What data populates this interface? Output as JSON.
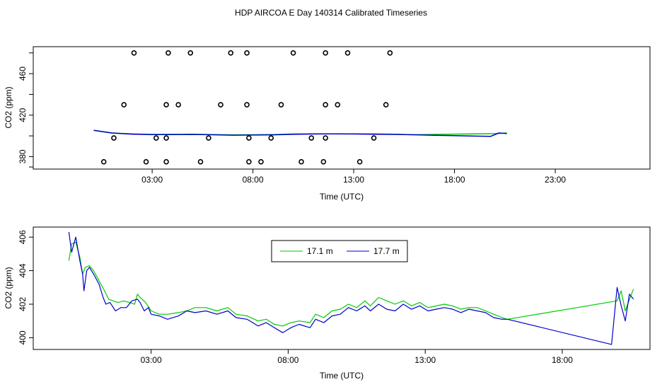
{
  "title": "HDP AIRCOA E  Day 140314  Calibrated Timeseries",
  "colors": {
    "green": "#00cc00",
    "blue": "#0000cc",
    "axis": "#000000",
    "background": "#ffffff"
  },
  "chart_data": [
    {
      "type": "scatter",
      "xlabel": "Time (UTC)",
      "ylabel": "CO2 (ppm)",
      "xlim": [
        -2.9,
        27.7
      ],
      "ylim": [
        368,
        486
      ],
      "x_ticks": [
        3,
        8,
        13,
        18,
        23
      ],
      "x_tick_labels": [
        "03:00",
        "08:00",
        "13:00",
        "18:00",
        "23:00"
      ],
      "y_ticks": [
        380,
        420,
        460
      ],
      "y_tick_labels": [
        "380",
        "420",
        "460"
      ],
      "grid": false,
      "scatter_points": [
        [
          2.1,
          480
        ],
        [
          3.8,
          480
        ],
        [
          4.9,
          480
        ],
        [
          6.9,
          480
        ],
        [
          7.7,
          480
        ],
        [
          10.0,
          480
        ],
        [
          11.6,
          480
        ],
        [
          12.7,
          480
        ],
        [
          14.8,
          480
        ],
        [
          1.6,
          430
        ],
        [
          3.7,
          430
        ],
        [
          4.3,
          430
        ],
        [
          6.4,
          430
        ],
        [
          7.7,
          430
        ],
        [
          9.4,
          430
        ],
        [
          11.6,
          430
        ],
        [
          12.2,
          430
        ],
        [
          14.6,
          430
        ],
        [
          1.1,
          398
        ],
        [
          3.2,
          398
        ],
        [
          3.7,
          398
        ],
        [
          5.8,
          398
        ],
        [
          7.8,
          398
        ],
        [
          8.9,
          398
        ],
        [
          10.9,
          398
        ],
        [
          11.6,
          398
        ],
        [
          14.0,
          398
        ],
        [
          0.6,
          375
        ],
        [
          2.7,
          375
        ],
        [
          3.7,
          375
        ],
        [
          5.4,
          375
        ],
        [
          7.8,
          375
        ],
        [
          8.4,
          375
        ],
        [
          10.4,
          375
        ],
        [
          11.5,
          375
        ],
        [
          13.3,
          375
        ]
      ],
      "series": [
        {
          "name": "17.1 m",
          "color": "#00cc00",
          "values": [
            [
              0.1,
              405.4
            ],
            [
              1.0,
              402.8
            ],
            [
              2.0,
              401.9
            ],
            [
              3.0,
              401.4
            ],
            [
              4.0,
              401.5
            ],
            [
              5.0,
              401.6
            ],
            [
              6.0,
              401.3
            ],
            [
              7.0,
              401.0
            ],
            [
              8.0,
              401.1
            ],
            [
              9.0,
              401.3
            ],
            [
              10.0,
              401.8
            ],
            [
              11.0,
              401.9
            ],
            [
              12.0,
              402.0
            ],
            [
              13.0,
              402.0
            ],
            [
              14.0,
              401.9
            ],
            [
              15.0,
              401.6
            ],
            [
              16.0,
              401.1
            ],
            [
              17.0,
              401.4
            ],
            [
              18.0,
              401.7
            ],
            [
              19.0,
              402.0
            ],
            [
              20.0,
              402.2
            ],
            [
              20.6,
              402.8
            ]
          ]
        },
        {
          "name": "17.7 m",
          "color": "#0000cc",
          "values": [
            [
              0.1,
              405.4
            ],
            [
              1.0,
              402.8
            ],
            [
              2.0,
              401.7
            ],
            [
              3.0,
              401.3
            ],
            [
              4.0,
              401.3
            ],
            [
              5.0,
              401.4
            ],
            [
              6.0,
              401.1
            ],
            [
              7.0,
              400.7
            ],
            [
              8.0,
              400.8
            ],
            [
              9.0,
              401.0
            ],
            [
              10.0,
              401.5
            ],
            [
              11.0,
              401.8
            ],
            [
              12.0,
              401.9
            ],
            [
              13.0,
              401.8
            ],
            [
              14.0,
              401.6
            ],
            [
              15.0,
              401.4
            ],
            [
              16.0,
              401.1
            ],
            [
              17.0,
              400.6
            ],
            [
              18.0,
              400.2
            ],
            [
              19.0,
              399.8
            ],
            [
              19.8,
              399.6
            ],
            [
              20.2,
              402.8
            ],
            [
              20.6,
              402.3
            ]
          ]
        }
      ]
    },
    {
      "type": "line",
      "xlabel": "Time (UTC)",
      "ylabel": "CO2 (ppm)",
      "xlim": [
        -1.3,
        21.2
      ],
      "ylim": [
        399.3,
        406.6
      ],
      "x_ticks": [
        3,
        8,
        13,
        18
      ],
      "x_tick_labels": [
        "03:00",
        "08:00",
        "13:00",
        "18:00"
      ],
      "y_ticks": [
        400,
        402,
        404,
        406
      ],
      "y_tick_labels": [
        "400",
        "402",
        "404",
        "406"
      ],
      "grid": false,
      "legend_position": "top-center",
      "series": [
        {
          "name": "17.1 m",
          "color": "#00cc00",
          "values": [
            [
              0.0,
              404.6
            ],
            [
              0.1,
              405.6
            ],
            [
              0.25,
              405.7
            ],
            [
              0.4,
              404.8
            ],
            [
              0.5,
              403.8
            ],
            [
              0.6,
              404.2
            ],
            [
              0.75,
              404.3
            ],
            [
              0.9,
              404.0
            ],
            [
              1.1,
              403.4
            ],
            [
              1.3,
              402.8
            ],
            [
              1.45,
              402.3
            ],
            [
              1.6,
              402.2
            ],
            [
              1.8,
              402.1
            ],
            [
              2.0,
              402.2
            ],
            [
              2.2,
              402.1
            ],
            [
              2.4,
              402.0
            ],
            [
              2.5,
              402.6
            ],
            [
              2.6,
              402.4
            ],
            [
              2.8,
              402.1
            ],
            [
              3.0,
              401.6
            ],
            [
              3.3,
              401.4
            ],
            [
              3.6,
              401.4
            ],
            [
              4.0,
              401.5
            ],
            [
              4.3,
              401.6
            ],
            [
              4.6,
              401.8
            ],
            [
              5.0,
              401.8
            ],
            [
              5.4,
              401.6
            ],
            [
              5.8,
              401.8
            ],
            [
              6.1,
              401.4
            ],
            [
              6.5,
              401.3
            ],
            [
              6.9,
              401.0
            ],
            [
              7.2,
              401.1
            ],
            [
              7.5,
              400.8
            ],
            [
              7.8,
              400.7
            ],
            [
              8.1,
              400.9
            ],
            [
              8.4,
              401.0
            ],
            [
              8.8,
              400.9
            ],
            [
              9.0,
              401.4
            ],
            [
              9.3,
              401.2
            ],
            [
              9.6,
              401.6
            ],
            [
              9.9,
              401.7
            ],
            [
              10.2,
              402.0
            ],
            [
              10.5,
              401.8
            ],
            [
              10.8,
              402.2
            ],
            [
              11.0,
              401.9
            ],
            [
              11.3,
              402.4
            ],
            [
              11.6,
              402.2
            ],
            [
              11.9,
              402.0
            ],
            [
              12.2,
              402.2
            ],
            [
              12.5,
              401.9
            ],
            [
              12.8,
              402.1
            ],
            [
              13.1,
              401.8
            ],
            [
              13.4,
              401.9
            ],
            [
              13.7,
              402.0
            ],
            [
              14.0,
              401.9
            ],
            [
              14.3,
              401.7
            ],
            [
              14.6,
              401.8
            ],
            [
              14.9,
              401.8
            ],
            [
              15.2,
              401.6
            ],
            [
              15.5,
              401.4
            ],
            [
              15.8,
              401.2
            ],
            [
              16.0,
              401.1
            ],
            [
              20.0,
              402.2
            ],
            [
              20.15,
              402.8
            ],
            [
              20.3,
              401.6
            ],
            [
              20.5,
              402.5
            ],
            [
              20.6,
              402.9
            ]
          ]
        },
        {
          "name": "17.7 m",
          "color": "#0000cc",
          "values": [
            [
              0.0,
              406.3
            ],
            [
              0.1,
              405.1
            ],
            [
              0.25,
              406.0
            ],
            [
              0.4,
              404.6
            ],
            [
              0.5,
              403.8
            ],
            [
              0.55,
              402.8
            ],
            [
              0.65,
              404.0
            ],
            [
              0.75,
              404.2
            ],
            [
              0.9,
              403.8
            ],
            [
              1.1,
              403.2
            ],
            [
              1.25,
              402.4
            ],
            [
              1.35,
              402.0
            ],
            [
              1.5,
              402.1
            ],
            [
              1.7,
              401.6
            ],
            [
              1.9,
              401.8
            ],
            [
              2.1,
              401.8
            ],
            [
              2.3,
              402.2
            ],
            [
              2.5,
              402.3
            ],
            [
              2.6,
              402.1
            ],
            [
              2.75,
              401.6
            ],
            [
              2.9,
              401.8
            ],
            [
              3.0,
              401.4
            ],
            [
              3.3,
              401.3
            ],
            [
              3.6,
              401.1
            ],
            [
              4.0,
              401.3
            ],
            [
              4.3,
              401.6
            ],
            [
              4.6,
              401.5
            ],
            [
              5.0,
              401.6
            ],
            [
              5.4,
              401.4
            ],
            [
              5.8,
              401.6
            ],
            [
              6.1,
              401.2
            ],
            [
              6.5,
              401.1
            ],
            [
              6.9,
              400.7
            ],
            [
              7.2,
              400.9
            ],
            [
              7.5,
              400.6
            ],
            [
              7.8,
              400.3
            ],
            [
              8.1,
              400.6
            ],
            [
              8.4,
              400.8
            ],
            [
              8.8,
              400.6
            ],
            [
              9.0,
              401.1
            ],
            [
              9.3,
              400.9
            ],
            [
              9.6,
              401.3
            ],
            [
              9.9,
              401.4
            ],
            [
              10.2,
              401.8
            ],
            [
              10.5,
              401.6
            ],
            [
              10.8,
              401.9
            ],
            [
              11.0,
              401.6
            ],
            [
              11.3,
              402.0
            ],
            [
              11.6,
              401.7
            ],
            [
              11.9,
              401.6
            ],
            [
              12.2,
              402.0
            ],
            [
              12.5,
              401.7
            ],
            [
              12.8,
              401.9
            ],
            [
              13.1,
              401.6
            ],
            [
              13.4,
              401.7
            ],
            [
              13.7,
              401.8
            ],
            [
              14.0,
              401.7
            ],
            [
              14.3,
              401.5
            ],
            [
              14.6,
              401.7
            ],
            [
              14.9,
              401.6
            ],
            [
              15.2,
              401.5
            ],
            [
              15.5,
              401.2
            ],
            [
              15.8,
              401.1
            ],
            [
              16.0,
              401.1
            ],
            [
              19.8,
              399.6
            ],
            [
              20.0,
              403.0
            ],
            [
              20.15,
              401.9
            ],
            [
              20.3,
              401.0
            ],
            [
              20.45,
              402.6
            ],
            [
              20.6,
              402.3
            ]
          ]
        }
      ]
    }
  ]
}
